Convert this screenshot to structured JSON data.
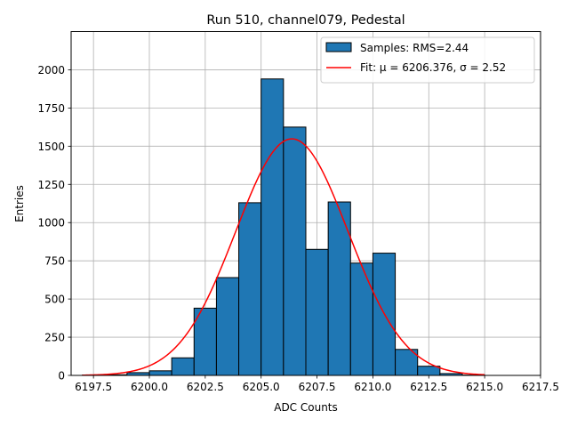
{
  "chart_data": {
    "type": "bar",
    "title": "Run 510, channel079, Pedestal",
    "xlabel": "ADC Counts",
    "ylabel": "Entries",
    "xlim": [
      6196.5,
      6217.5
    ],
    "ylim": [
      0,
      2250
    ],
    "x_ticks": [
      "6197.5",
      "6200.0",
      "6202.5",
      "6205.0",
      "6207.5",
      "6210.0",
      "6212.5",
      "6215.0",
      "6217.5"
    ],
    "x_tick_values": [
      6197.5,
      6200.0,
      6202.5,
      6205.0,
      6207.5,
      6210.0,
      6212.5,
      6215.0,
      6217.5
    ],
    "y_ticks": [
      "0",
      "250",
      "500",
      "750",
      "1000",
      "1250",
      "1500",
      "1750",
      "2000"
    ],
    "y_tick_values": [
      0,
      250,
      500,
      750,
      1000,
      1250,
      1500,
      1750,
      2000
    ],
    "grid": true,
    "legend_position": "upper-right",
    "series": [
      {
        "name": "Samples: RMS=2.44",
        "kind": "histogram",
        "color": "#1f77b4",
        "edge_color": "#000000",
        "bin_edges": [
          6197.0,
          6198.0,
          6199.0,
          6200.0,
          6201.0,
          6202.0,
          6203.0,
          6204.0,
          6205.0,
          6206.0,
          6207.0,
          6208.0,
          6209.0,
          6210.0,
          6211.0,
          6212.0,
          6213.0,
          6214.0,
          6215.0
        ],
        "counts": [
          2,
          4,
          18,
          30,
          115,
          440,
          640,
          1130,
          1940,
          1625,
          825,
          1135,
          735,
          800,
          170,
          60,
          12,
          2
        ]
      },
      {
        "name": "Fit: μ = 6206.376, σ = 2.52",
        "kind": "gaussian_fit",
        "color": "#ff0000",
        "mu": 6206.376,
        "sigma": 2.52,
        "amplitude": 1548,
        "x_range": [
          6197.0,
          6215.0
        ]
      }
    ]
  }
}
